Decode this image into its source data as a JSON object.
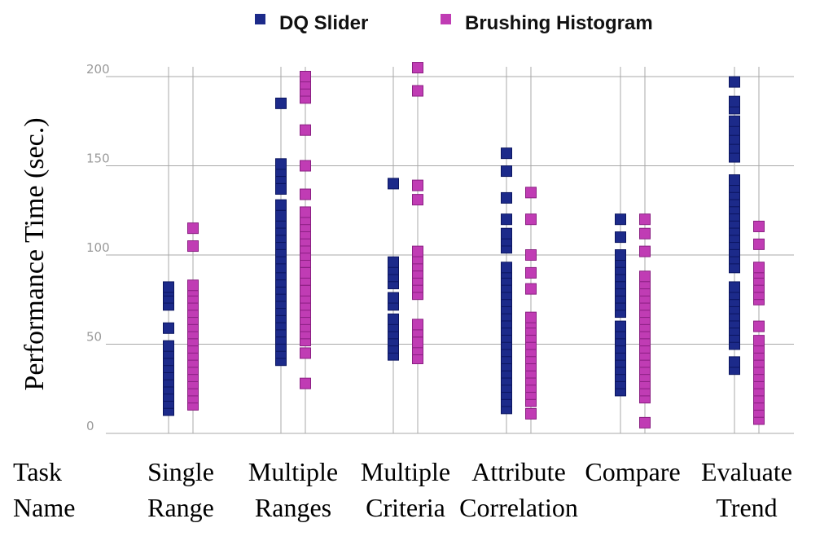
{
  "chart_data": {
    "type": "scatter",
    "title": "",
    "ylabel": "Performance Time (sec.)",
    "xlabel": "Task Name",
    "ylim": [
      0,
      200
    ],
    "yticks": [
      0,
      50,
      100,
      150,
      200
    ],
    "grid": true,
    "legend_position": "top",
    "task_header": [
      "Task",
      "Name"
    ],
    "categories": [
      [
        "Single",
        "Range"
      ],
      [
        "Multiple",
        "Ranges"
      ],
      [
        "Multiple",
        "Criteria"
      ],
      [
        "Attribute",
        "Correlation"
      ],
      [
        "Compare",
        ""
      ],
      [
        "Evaluate",
        "Trend"
      ]
    ],
    "series": [
      {
        "name": "DQ Slider",
        "color": "#1c2a8a",
        "values": [
          [
            13,
            17,
            21,
            25,
            29,
            33,
            37,
            41,
            45,
            49,
            59,
            72,
            76,
            80,
            82
          ],
          [
            41,
            45,
            49,
            53,
            57,
            61,
            65,
            69,
            73,
            77,
            81,
            85,
            89,
            93,
            98,
            102,
            106,
            110,
            114,
            118,
            122,
            128,
            137,
            143,
            147,
            151,
            185
          ],
          [
            44,
            48,
            52,
            56,
            60,
            64,
            72,
            76,
            84,
            88,
            92,
            96,
            140
          ],
          [
            14,
            18,
            22,
            26,
            30,
            34,
            38,
            42,
            46,
            50,
            54,
            58,
            62,
            66,
            70,
            74,
            78,
            82,
            86,
            90,
            93,
            104,
            108,
            112,
            120,
            132,
            147,
            157
          ],
          [
            24,
            28,
            32,
            36,
            40,
            44,
            48,
            52,
            56,
            60,
            68,
            72,
            76,
            80,
            84,
            88,
            92,
            96,
            100,
            110,
            120
          ],
          [
            36,
            40,
            50,
            54,
            58,
            62,
            66,
            70,
            74,
            78,
            82,
            93,
            98,
            102,
            106,
            110,
            114,
            118,
            122,
            126,
            130,
            134,
            138,
            142,
            155,
            160,
            165,
            170,
            175,
            182,
            186,
            197
          ]
        ]
      },
      {
        "name": "Brushing Histogram",
        "color": "#c03cb4",
        "values": [
          [
            16,
            20,
            24,
            28,
            32,
            36,
            40,
            44,
            48,
            52,
            56,
            60,
            64,
            68,
            72,
            76,
            80,
            83,
            105,
            115
          ],
          [
            28,
            45,
            52,
            56,
            60,
            64,
            68,
            72,
            76,
            80,
            86,
            90,
            96,
            100,
            104,
            108,
            112,
            116,
            120,
            124,
            134,
            150,
            170,
            188,
            192,
            196,
            200
          ],
          [
            42,
            47,
            51,
            57,
            61,
            78,
            82,
            86,
            90,
            94,
            98,
            102,
            131,
            139,
            192,
            205
          ],
          [
            11,
            18,
            22,
            26,
            30,
            34,
            38,
            42,
            46,
            50,
            54,
            58,
            62,
            65,
            81,
            90,
            100,
            120,
            135
          ],
          [
            6,
            20,
            24,
            28,
            32,
            36,
            40,
            44,
            48,
            52,
            56,
            60,
            64,
            68,
            72,
            76,
            80,
            84,
            88,
            102,
            112,
            120
          ],
          [
            8,
            12,
            16,
            20,
            24,
            28,
            32,
            36,
            40,
            44,
            48,
            52,
            60,
            75,
            78,
            82,
            86,
            90,
            93,
            106,
            116
          ]
        ]
      }
    ]
  }
}
